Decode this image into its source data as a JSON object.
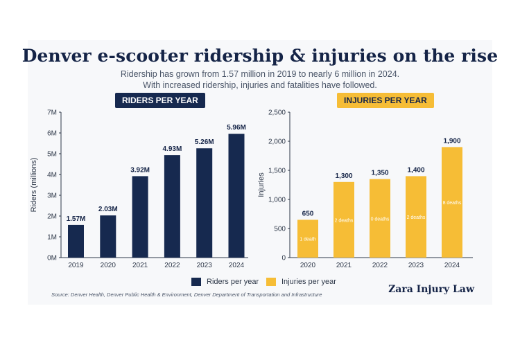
{
  "header": {
    "title": "Denver e-scooter ridership & injuries on the rise",
    "subtitle_line1": "Ridership has grown from 1.57 million in 2019 to nearly 6 million in 2024.",
    "subtitle_line2": "With increased ridership, injuries and fatalities have followed."
  },
  "footer": {
    "source": "Source: Denver Health, Denver Public Health & Environment, Denver Department of Transportation and Infrastructure",
    "brand": "Zara Injury Law"
  },
  "colors": {
    "navy": "#16294f",
    "gold": "#f6bd36"
  },
  "chart_data": [
    {
      "type": "bar",
      "title": "RIDERS PER YEAR",
      "ylabel": "Riders (millions)",
      "categories": [
        "2019",
        "2020",
        "2021",
        "2022",
        "2023",
        "2024"
      ],
      "values": [
        1.57,
        2.03,
        3.92,
        4.93,
        5.26,
        5.96
      ],
      "data_labels": [
        "1.57M",
        "2.03M",
        "3.92M",
        "4.93M",
        "5.26M",
        "5.96M"
      ],
      "ylim": [
        0,
        7
      ],
      "yticks": [
        0,
        1,
        2,
        3,
        4,
        5,
        6,
        7
      ],
      "ytick_labels": [
        "0M",
        "1M",
        "2M",
        "3M",
        "4M",
        "5M",
        "6M",
        "7M"
      ],
      "legend": "Riders per year",
      "color": "#16294f",
      "grid": false
    },
    {
      "type": "bar",
      "title": "INJURIES PER YEAR",
      "ylabel": "Injuries",
      "categories": [
        "2020",
        "2021",
        "2022",
        "2023",
        "2024"
      ],
      "values": [
        650,
        1300,
        1350,
        1400,
        1900
      ],
      "data_labels": [
        "650",
        "1,300",
        "1,350",
        "1,400",
        "1,900"
      ],
      "annotations": [
        "1 death",
        "2 deaths",
        "0 deaths",
        "2 deaths",
        "8 deaths"
      ],
      "ylim": [
        0,
        2500
      ],
      "yticks": [
        0,
        500,
        1000,
        1500,
        2000,
        2500
      ],
      "ytick_labels": [
        "0",
        "500",
        "1,000",
        "1,500",
        "2,000",
        "2,500"
      ],
      "legend": "Injuries per year",
      "color": "#f6bd36",
      "grid": false
    }
  ]
}
